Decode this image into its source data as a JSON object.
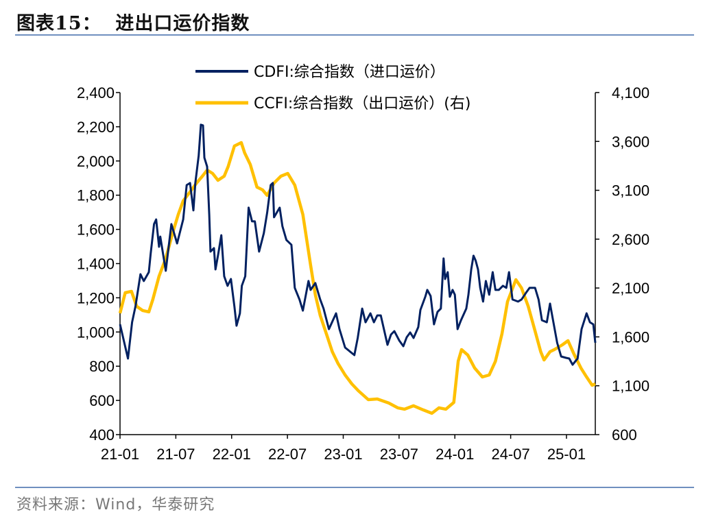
{
  "title": "图表15：  进出口运价指数",
  "source": "资料来源：Wind，华泰研究",
  "chart_data": {
    "type": "line",
    "title": "",
    "xlabel": "",
    "ylabel": "",
    "y2label": "",
    "grid": false,
    "legend_position": "top-center",
    "xlim": [
      "2021-01-01",
      "2025-04-04"
    ],
    "ylim": [
      400,
      2400
    ],
    "y2lim": [
      600,
      4100
    ],
    "x_ticks": [
      {
        "date": "2021-01-01",
        "label": "21-01"
      },
      {
        "date": "2021-07-01",
        "label": "21-07"
      },
      {
        "date": "2022-01-01",
        "label": "22-01"
      },
      {
        "date": "2022-07-01",
        "label": "22-07"
      },
      {
        "date": "2023-01-01",
        "label": "23-01"
      },
      {
        "date": "2023-07-01",
        "label": "23-07"
      },
      {
        "date": "2024-01-01",
        "label": "24-01"
      },
      {
        "date": "2024-07-01",
        "label": "24-07"
      },
      {
        "date": "2025-01-01",
        "label": "25-01"
      }
    ],
    "y_ticks": [
      400,
      600,
      800,
      1000,
      1200,
      1400,
      1600,
      1800,
      2000,
      2200,
      2400
    ],
    "y_tick_labels": [
      "400",
      "600",
      "800",
      "1,000",
      "1,200",
      "1,400",
      "1,600",
      "1,800",
      "2,000",
      "2,200",
      "2,400"
    ],
    "y2_ticks": [
      600,
      1100,
      1600,
      2100,
      2600,
      3100,
      3600,
      4100
    ],
    "y2_tick_labels": [
      "600",
      "1,100",
      "1,600",
      "2,100",
      "2,600",
      "3,100",
      "3,600",
      "4,100"
    ],
    "series": [
      {
        "name": "CDFI:综合指数（进口运价）",
        "axis": "left",
        "color": "#002060",
        "points": [
          [
            "2021-01-01",
            1045
          ],
          [
            "2021-01-27",
            845
          ],
          [
            "2021-02-10",
            1057
          ],
          [
            "2021-02-21",
            1149
          ],
          [
            "2021-03-07",
            1338
          ],
          [
            "2021-03-18",
            1298
          ],
          [
            "2021-04-04",
            1350
          ],
          [
            "2021-04-10",
            1458
          ],
          [
            "2021-04-21",
            1631
          ],
          [
            "2021-04-28",
            1658
          ],
          [
            "2021-05-07",
            1498
          ],
          [
            "2021-05-11",
            1558
          ],
          [
            "2021-05-29",
            1358
          ],
          [
            "2021-06-17",
            1631
          ],
          [
            "2021-07-05",
            1518
          ],
          [
            "2021-07-25",
            1658
          ],
          [
            "2021-08-06",
            1859
          ],
          [
            "2021-08-17",
            1871
          ],
          [
            "2021-08-28",
            1711
          ],
          [
            "2021-09-04",
            1871
          ],
          [
            "2021-09-15",
            2031
          ],
          [
            "2021-09-22",
            2212
          ],
          [
            "2021-09-29",
            2208
          ],
          [
            "2021-10-03",
            2019
          ],
          [
            "2021-10-12",
            1967
          ],
          [
            "2021-10-19",
            1687
          ],
          [
            "2021-10-23",
            1470
          ],
          [
            "2021-11-04",
            1490
          ],
          [
            "2021-11-09",
            1366
          ],
          [
            "2021-11-17",
            1446
          ],
          [
            "2021-11-28",
            1566
          ],
          [
            "2021-12-07",
            1326
          ],
          [
            "2021-12-18",
            1270
          ],
          [
            "2021-12-29",
            1310
          ],
          [
            "2022-01-10",
            1149
          ],
          [
            "2022-01-17",
            1037
          ],
          [
            "2022-01-28",
            1109
          ],
          [
            "2022-02-04",
            1270
          ],
          [
            "2022-02-15",
            1326
          ],
          [
            "2022-02-26",
            1727
          ],
          [
            "2022-03-07",
            1647
          ],
          [
            "2022-03-16",
            1647
          ],
          [
            "2022-03-30",
            1470
          ],
          [
            "2022-04-15",
            1578
          ],
          [
            "2022-04-26",
            1699
          ],
          [
            "2022-05-07",
            1859
          ],
          [
            "2022-05-14",
            1871
          ],
          [
            "2022-05-18",
            1671
          ],
          [
            "2022-06-06",
            1727
          ],
          [
            "2022-06-15",
            1618
          ],
          [
            "2022-06-28",
            1538
          ],
          [
            "2022-07-14",
            1510
          ],
          [
            "2022-07-25",
            1258
          ],
          [
            "2022-08-10",
            1190
          ],
          [
            "2022-08-21",
            1125
          ],
          [
            "2022-09-09",
            1298
          ],
          [
            "2022-09-16",
            1246
          ],
          [
            "2022-10-01",
            1286
          ],
          [
            "2022-10-17",
            1190
          ],
          [
            "2022-10-28",
            1137
          ],
          [
            "2022-11-15",
            1017
          ],
          [
            "2022-12-08",
            1109
          ],
          [
            "2022-12-19",
            1017
          ],
          [
            "2023-01-07",
            909
          ],
          [
            "2023-02-07",
            865
          ],
          [
            "2023-02-18",
            965
          ],
          [
            "2023-03-02",
            1137
          ],
          [
            "2023-03-13",
            1057
          ],
          [
            "2023-03-29",
            1109
          ],
          [
            "2023-04-10",
            1057
          ],
          [
            "2023-04-21",
            1097
          ],
          [
            "2023-05-02",
            1097
          ],
          [
            "2023-05-24",
            925
          ],
          [
            "2023-06-05",
            985
          ],
          [
            "2023-06-16",
            1005
          ],
          [
            "2023-07-02",
            949
          ],
          [
            "2023-07-15",
            917
          ],
          [
            "2023-07-26",
            969
          ],
          [
            "2023-08-07",
            997
          ],
          [
            "2023-08-18",
            965
          ],
          [
            "2023-09-03",
            1029
          ],
          [
            "2023-09-10",
            1129
          ],
          [
            "2023-09-26",
            1206
          ],
          [
            "2023-10-02",
            1246
          ],
          [
            "2023-10-13",
            1210
          ],
          [
            "2023-10-24",
            1045
          ],
          [
            "2023-11-05",
            1117
          ],
          [
            "2023-11-16",
            1137
          ],
          [
            "2023-11-25",
            1430
          ],
          [
            "2023-11-30",
            1310
          ],
          [
            "2023-12-08",
            1350
          ],
          [
            "2023-12-15",
            1206
          ],
          [
            "2023-12-24",
            1246
          ],
          [
            "2024-01-01",
            1218
          ],
          [
            "2024-01-10",
            1017
          ],
          [
            "2024-01-21",
            1069
          ],
          [
            "2024-02-08",
            1137
          ],
          [
            "2024-02-15",
            1218
          ],
          [
            "2024-02-24",
            1366
          ],
          [
            "2024-03-01",
            1446
          ],
          [
            "2024-03-08",
            1418
          ],
          [
            "2024-03-16",
            1366
          ],
          [
            "2024-03-23",
            1258
          ],
          [
            "2024-04-02",
            1178
          ],
          [
            "2024-04-11",
            1298
          ],
          [
            "2024-04-22",
            1218
          ],
          [
            "2024-05-03",
            1350
          ],
          [
            "2024-05-12",
            1246
          ],
          [
            "2024-05-23",
            1246
          ],
          [
            "2024-06-06",
            1270
          ],
          [
            "2024-06-17",
            1258
          ],
          [
            "2024-06-26",
            1350
          ],
          [
            "2024-07-07",
            1190
          ],
          [
            "2024-07-25",
            1178
          ],
          [
            "2024-08-06",
            1190
          ],
          [
            "2024-08-21",
            1230
          ],
          [
            "2024-09-02",
            1258
          ],
          [
            "2024-09-20",
            1258
          ],
          [
            "2024-10-01",
            1190
          ],
          [
            "2024-10-12",
            1069
          ],
          [
            "2024-10-28",
            1057
          ],
          [
            "2024-11-08",
            1166
          ],
          [
            "2024-11-15",
            1097
          ],
          [
            "2024-12-01",
            937
          ],
          [
            "2024-12-14",
            857
          ],
          [
            "2024-12-30",
            849
          ],
          [
            "2025-01-10",
            845
          ],
          [
            "2025-01-21",
            809
          ],
          [
            "2025-02-07",
            845
          ],
          [
            "2025-02-20",
            1017
          ],
          [
            "2025-03-06",
            1109
          ],
          [
            "2025-03-17",
            1057
          ],
          [
            "2025-03-28",
            1045
          ],
          [
            "2025-04-04",
            937
          ]
        ]
      },
      {
        "name": "CCFI:综合指数（出口运价）(右)",
        "axis": "right",
        "color": "#FFC000",
        "points": [
          [
            "2021-01-01",
            1842
          ],
          [
            "2021-01-18",
            2052
          ],
          [
            "2021-02-08",
            2066
          ],
          [
            "2021-02-25",
            1912
          ],
          [
            "2021-03-14",
            1870
          ],
          [
            "2021-04-04",
            1856
          ],
          [
            "2021-04-17",
            1982
          ],
          [
            "2021-05-07",
            2220
          ],
          [
            "2021-05-29",
            2403
          ],
          [
            "2021-06-21",
            2662
          ],
          [
            "2021-07-09",
            2852
          ],
          [
            "2021-07-25",
            2992
          ],
          [
            "2021-08-17",
            3083
          ],
          [
            "2021-09-08",
            3174
          ],
          [
            "2021-09-27",
            3244
          ],
          [
            "2021-10-12",
            3307
          ],
          [
            "2021-10-30",
            3272
          ],
          [
            "2021-11-17",
            3202
          ],
          [
            "2021-12-07",
            3244
          ],
          [
            "2021-12-20",
            3343
          ],
          [
            "2022-01-10",
            3553
          ],
          [
            "2022-02-02",
            3588
          ],
          [
            "2022-02-13",
            3483
          ],
          [
            "2022-03-01",
            3364
          ],
          [
            "2022-03-23",
            3132
          ],
          [
            "2022-04-11",
            3104
          ],
          [
            "2022-04-26",
            3048
          ],
          [
            "2022-05-18",
            3174
          ],
          [
            "2022-06-10",
            3244
          ],
          [
            "2022-07-02",
            3272
          ],
          [
            "2022-07-25",
            3153
          ],
          [
            "2022-08-21",
            2852
          ],
          [
            "2022-09-16",
            2333
          ],
          [
            "2022-10-01",
            2031
          ],
          [
            "2022-10-17",
            1820
          ],
          [
            "2022-11-09",
            1610
          ],
          [
            "2022-11-26",
            1449
          ],
          [
            "2022-12-14",
            1330
          ],
          [
            "2023-01-07",
            1210
          ],
          [
            "2023-01-29",
            1119
          ],
          [
            "2023-02-20",
            1049
          ],
          [
            "2023-03-22",
            958
          ],
          [
            "2023-04-21",
            965
          ],
          [
            "2023-05-28",
            923
          ],
          [
            "2023-06-27",
            874
          ],
          [
            "2023-07-19",
            860
          ],
          [
            "2023-08-18",
            895
          ],
          [
            "2023-09-19",
            853
          ],
          [
            "2023-10-17",
            818
          ],
          [
            "2023-11-10",
            874
          ],
          [
            "2023-12-02",
            860
          ],
          [
            "2023-12-28",
            930
          ],
          [
            "2024-01-12",
            1351
          ],
          [
            "2024-01-23",
            1470
          ],
          [
            "2024-02-13",
            1414
          ],
          [
            "2024-03-05",
            1281
          ],
          [
            "2024-03-30",
            1190
          ],
          [
            "2024-04-22",
            1210
          ],
          [
            "2024-05-12",
            1351
          ],
          [
            "2024-06-03",
            1631
          ],
          [
            "2024-06-21",
            1961
          ],
          [
            "2024-07-18",
            2185
          ],
          [
            "2024-08-06",
            2101
          ],
          [
            "2024-08-28",
            1912
          ],
          [
            "2024-09-20",
            1659
          ],
          [
            "2024-10-08",
            1449
          ],
          [
            "2024-10-19",
            1364
          ],
          [
            "2024-11-08",
            1449
          ],
          [
            "2024-11-22",
            1470
          ],
          [
            "2024-12-18",
            1519
          ],
          [
            "2025-01-06",
            1561
          ],
          [
            "2025-01-26",
            1421
          ],
          [
            "2025-02-18",
            1281
          ],
          [
            "2025-03-06",
            1190
          ],
          [
            "2025-03-24",
            1105
          ],
          [
            "2025-04-04",
            1119
          ]
        ]
      }
    ]
  }
}
